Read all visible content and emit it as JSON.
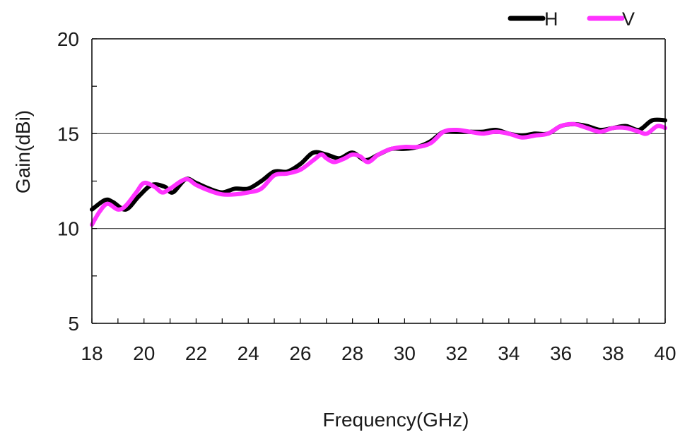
{
  "chart_data": {
    "type": "line",
    "title": "",
    "xlabel": "Frequency(GHz)",
    "ylabel": "Gain(dBi)",
    "xlim": [
      18,
      40
    ],
    "ylim": [
      5,
      20
    ],
    "xticks": [
      18,
      20,
      22,
      24,
      26,
      28,
      30,
      32,
      34,
      36,
      38,
      40
    ],
    "xtick_labels": [
      "18",
      "20",
      "22",
      "24",
      "26",
      "28",
      "30",
      "32",
      "34",
      "36",
      "38",
      "40"
    ],
    "yticks": [
      5,
      10,
      15,
      20
    ],
    "ytick_labels": [
      "5",
      "10",
      "15",
      "20"
    ],
    "grid": {
      "horizontal_at": [
        10,
        15
      ]
    },
    "legend": {
      "position": "top-right"
    },
    "series": [
      {
        "name": "H",
        "color": "#000000",
        "x": [
          18,
          18.5,
          18.8,
          19.3,
          19.8,
          20.3,
          20.8,
          21.1,
          21.6,
          22.0,
          22.5,
          23.0,
          23.5,
          24.0,
          24.5,
          25.0,
          25.5,
          26.0,
          26.5,
          27.0,
          27.5,
          28.0,
          28.5,
          29.0,
          29.5,
          30.0,
          30.5,
          31.0,
          31.5,
          32.0,
          32.5,
          33.0,
          33.5,
          34.0,
          34.5,
          35.0,
          35.5,
          36.0,
          36.5,
          37.0,
          37.5,
          38.0,
          38.5,
          39.0,
          39.5,
          40.0
        ],
        "y": [
          11.0,
          11.5,
          11.4,
          11.0,
          11.7,
          12.3,
          12.2,
          11.9,
          12.6,
          12.4,
          12.1,
          11.9,
          12.1,
          12.1,
          12.5,
          13.0,
          13.0,
          13.4,
          14.0,
          13.9,
          13.7,
          14.0,
          13.6,
          13.9,
          14.2,
          14.2,
          14.3,
          14.6,
          15.1,
          15.1,
          15.1,
          15.1,
          15.2,
          15.0,
          14.9,
          15.0,
          15.0,
          15.4,
          15.5,
          15.4,
          15.2,
          15.3,
          15.4,
          15.2,
          15.7,
          15.7
        ]
      },
      {
        "name": "V",
        "color": "#ff33ff",
        "x": [
          18,
          18.3,
          18.6,
          19.0,
          19.3,
          19.7,
          20.0,
          20.4,
          20.7,
          21.0,
          21.6,
          22.0,
          22.5,
          23.0,
          23.5,
          24.0,
          24.5,
          25.0,
          25.5,
          26.0,
          26.5,
          26.8,
          27.0,
          27.3,
          27.7,
          28.0,
          28.3,
          28.6,
          29.0,
          29.5,
          30.0,
          30.5,
          31.0,
          31.5,
          32.0,
          32.5,
          33.0,
          33.5,
          34.0,
          34.5,
          35.0,
          35.5,
          36.0,
          36.5,
          37.0,
          37.5,
          38.0,
          38.5,
          39.0,
          39.3,
          39.7,
          40.0
        ],
        "y": [
          10.2,
          10.9,
          11.3,
          11.0,
          11.2,
          11.9,
          12.4,
          12.2,
          11.9,
          12.1,
          12.6,
          12.3,
          12.0,
          11.8,
          11.8,
          11.9,
          12.1,
          12.8,
          12.9,
          13.1,
          13.6,
          13.9,
          13.7,
          13.5,
          13.7,
          13.9,
          13.8,
          13.5,
          13.9,
          14.2,
          14.3,
          14.3,
          14.5,
          15.1,
          15.2,
          15.1,
          15.0,
          15.1,
          15.0,
          14.8,
          14.9,
          15.0,
          15.4,
          15.5,
          15.3,
          15.1,
          15.3,
          15.3,
          15.1,
          15.0,
          15.4,
          15.3
        ]
      }
    ]
  }
}
